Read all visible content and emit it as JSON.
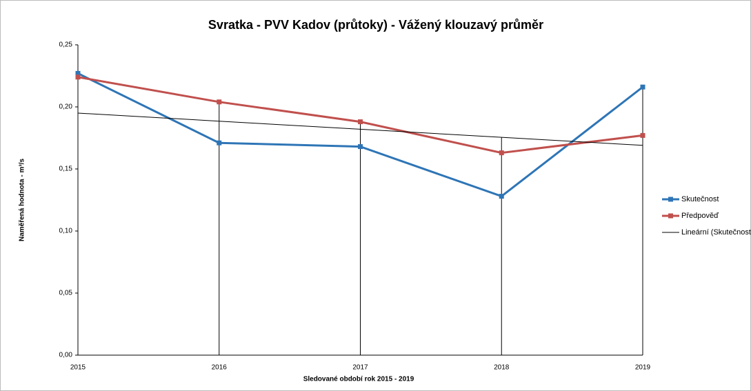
{
  "chart_data": {
    "type": "line",
    "title": "Svratka - PVV Kadov (průtoky) - Vážený klouzavý průměr",
    "xlabel": "Sledované období rok 2015 - 2019",
    "ylabel": "Naměřená hodnota - m³/s",
    "categories": [
      "2015",
      "2016",
      "2017",
      "2018",
      "2019"
    ],
    "series": [
      {
        "name": "Skutečnost",
        "color": "#2e75b6",
        "marker": "square",
        "values": [
          0.227,
          0.171,
          0.168,
          0.128,
          0.216
        ]
      },
      {
        "name": "Předpověď",
        "color": "#c0504d",
        "marker": "square",
        "values": [
          0.224,
          0.204,
          0.188,
          0.163,
          0.177
        ]
      },
      {
        "name": "Lineární (Skutečnost )",
        "color": "#000000",
        "values": [
          0.195,
          0.1885,
          0.182,
          0.1755,
          0.169
        ]
      }
    ],
    "ylim": [
      0,
      0.25
    ],
    "yticks": [
      {
        "value": 0,
        "label": "0,00"
      },
      {
        "value": 0.05,
        "label": "0,05"
      },
      {
        "value": 0.1,
        "label": "0,10"
      },
      {
        "value": 0.15,
        "label": "0,15"
      },
      {
        "value": 0.2,
        "label": "0,20"
      },
      {
        "value": 0.25,
        "label": "0,25"
      }
    ],
    "drop_lines": true,
    "legend": "right"
  }
}
